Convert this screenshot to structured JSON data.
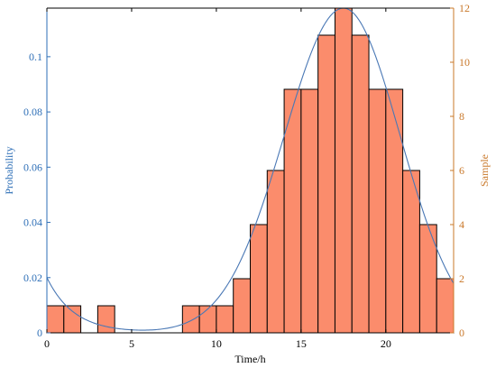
{
  "chart_data": {
    "type": "bar",
    "xlabel": "Time/h",
    "ylabel_left": "Probability",
    "ylabel_right": "Sample",
    "xlim": [
      0,
      24
    ],
    "ylim_left": [
      0,
      0.1176
    ],
    "ylim_right": [
      0,
      12
    ],
    "x_ticks": [
      0,
      5,
      10,
      15,
      20
    ],
    "y_left_ticks": [
      0,
      0.02,
      0.04,
      0.06,
      0.08,
      0.1
    ],
    "y_left_tick_labels": [
      "0",
      "0.02",
      "0.04",
      "0.06",
      "0.08",
      "0.1"
    ],
    "y_right_ticks": [
      0,
      2,
      4,
      6,
      8,
      10,
      12
    ],
    "bin_width": 1,
    "bins": [
      {
        "start": 0,
        "count": 1
      },
      {
        "start": 1,
        "count": 1
      },
      {
        "start": 2,
        "count": 0
      },
      {
        "start": 3,
        "count": 1
      },
      {
        "start": 4,
        "count": 0
      },
      {
        "start": 5,
        "count": 0
      },
      {
        "start": 6,
        "count": 0
      },
      {
        "start": 7,
        "count": 0
      },
      {
        "start": 8,
        "count": 1
      },
      {
        "start": 9,
        "count": 1
      },
      {
        "start": 10,
        "count": 1
      },
      {
        "start": 11,
        "count": 2
      },
      {
        "start": 12,
        "count": 4
      },
      {
        "start": 13,
        "count": 6
      },
      {
        "start": 14,
        "count": 9
      },
      {
        "start": 15,
        "count": 9
      },
      {
        "start": 16,
        "count": 11
      },
      {
        "start": 17,
        "count": 12
      },
      {
        "start": 18,
        "count": 11
      },
      {
        "start": 19,
        "count": 9
      },
      {
        "start": 20,
        "count": 9
      },
      {
        "start": 21,
        "count": 6
      },
      {
        "start": 22,
        "count": 4
      },
      {
        "start": 23,
        "count": 2
      }
    ],
    "fit_curve": {
      "type": "gaussian",
      "mean": 17.5,
      "peak": 0.1176,
      "sigma_right": 3.35,
      "sigma_left": 3.5,
      "left_tail_rises_to": 0.02
    },
    "colors": {
      "bar_fill": "#fb8c6c",
      "bar_edge": "#000000",
      "curve": "#4a78b5",
      "left_axis": "#2e6fb7",
      "right_axis": "#c9782a",
      "bottom_axis": "#000000"
    }
  }
}
